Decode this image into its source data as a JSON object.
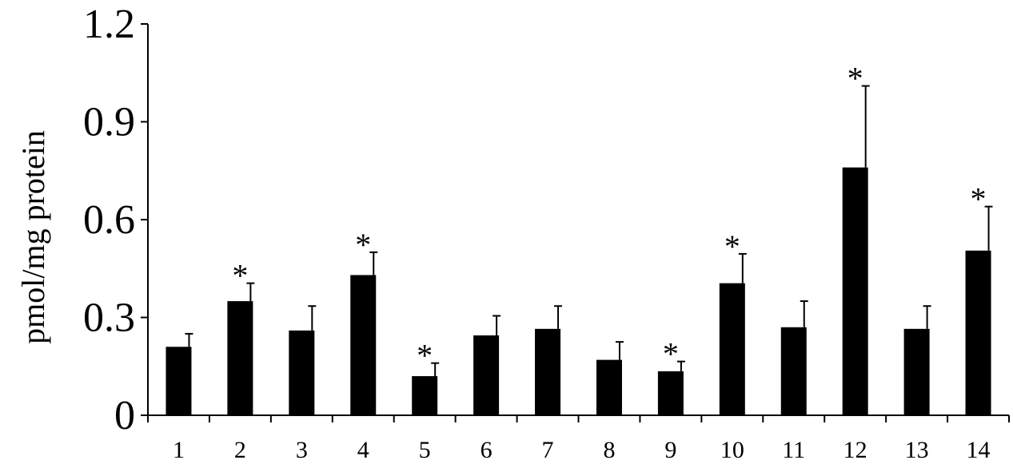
{
  "chart_data": {
    "type": "bar",
    "title": "",
    "xlabel": "",
    "ylabel": "pmol/mg protein",
    "ylim": [
      0,
      1.2
    ],
    "yticks": [
      "0",
      "0.3",
      "0.6",
      "0.9",
      "1.2"
    ],
    "ytick_values": [
      0,
      0.3,
      0.6,
      0.9,
      1.2
    ],
    "categories": [
      "1",
      "2",
      "3",
      "4",
      "5",
      "6",
      "7",
      "8",
      "9",
      "10",
      "11",
      "12",
      "13",
      "14"
    ],
    "values": [
      0.21,
      0.35,
      0.26,
      0.43,
      0.12,
      0.245,
      0.265,
      0.17,
      0.135,
      0.405,
      0.27,
      0.76,
      0.265,
      0.505
    ],
    "errors": [
      0.04,
      0.055,
      0.075,
      0.07,
      0.04,
      0.06,
      0.07,
      0.055,
      0.03,
      0.09,
      0.08,
      0.25,
      0.07,
      0.135
    ],
    "significance": [
      "",
      "*",
      "",
      "*",
      "*",
      "",
      "",
      "",
      "*",
      "*",
      "",
      "*",
      "",
      "*"
    ],
    "bar_color": "#000000",
    "grid": false,
    "legend": "none"
  }
}
